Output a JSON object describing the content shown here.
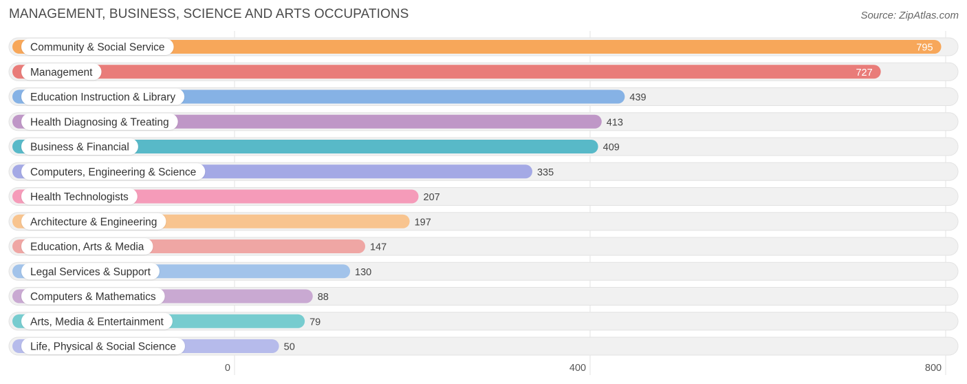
{
  "title": "MANAGEMENT, BUSINESS, SCIENCE AND ARTS OCCUPATIONS",
  "source": "Source: ZipAtlas.com",
  "chart_data": {
    "type": "bar",
    "orientation": "horizontal",
    "categories": [
      "Community & Social Service",
      "Management",
      "Education Instruction & Library",
      "Health Diagnosing & Treating",
      "Business & Financial",
      "Computers, Engineering & Science",
      "Health Technologists",
      "Architecture & Engineering",
      "Education, Arts & Media",
      "Legal Services & Support",
      "Computers & Mathematics",
      "Arts, Media & Entertainment",
      "Life, Physical & Social Science"
    ],
    "values": [
      795,
      727,
      439,
      413,
      409,
      335,
      207,
      197,
      147,
      130,
      88,
      79,
      50
    ],
    "colors": [
      "#f7a75a",
      "#e97c79",
      "#86b2e5",
      "#bf97c7",
      "#58b9c8",
      "#a4a9e5",
      "#f59bb9",
      "#f8c48f",
      "#efa6a4",
      "#a2c3ea",
      "#c9a9d2",
      "#77cccf",
      "#b6bbeb"
    ],
    "xlim": [
      0,
      800
    ],
    "xticks": [
      0,
      400,
      800
    ],
    "xtick_labels": [
      "0",
      "400",
      "800"
    ],
    "grid": true,
    "value_labels_inside_threshold": 700
  }
}
